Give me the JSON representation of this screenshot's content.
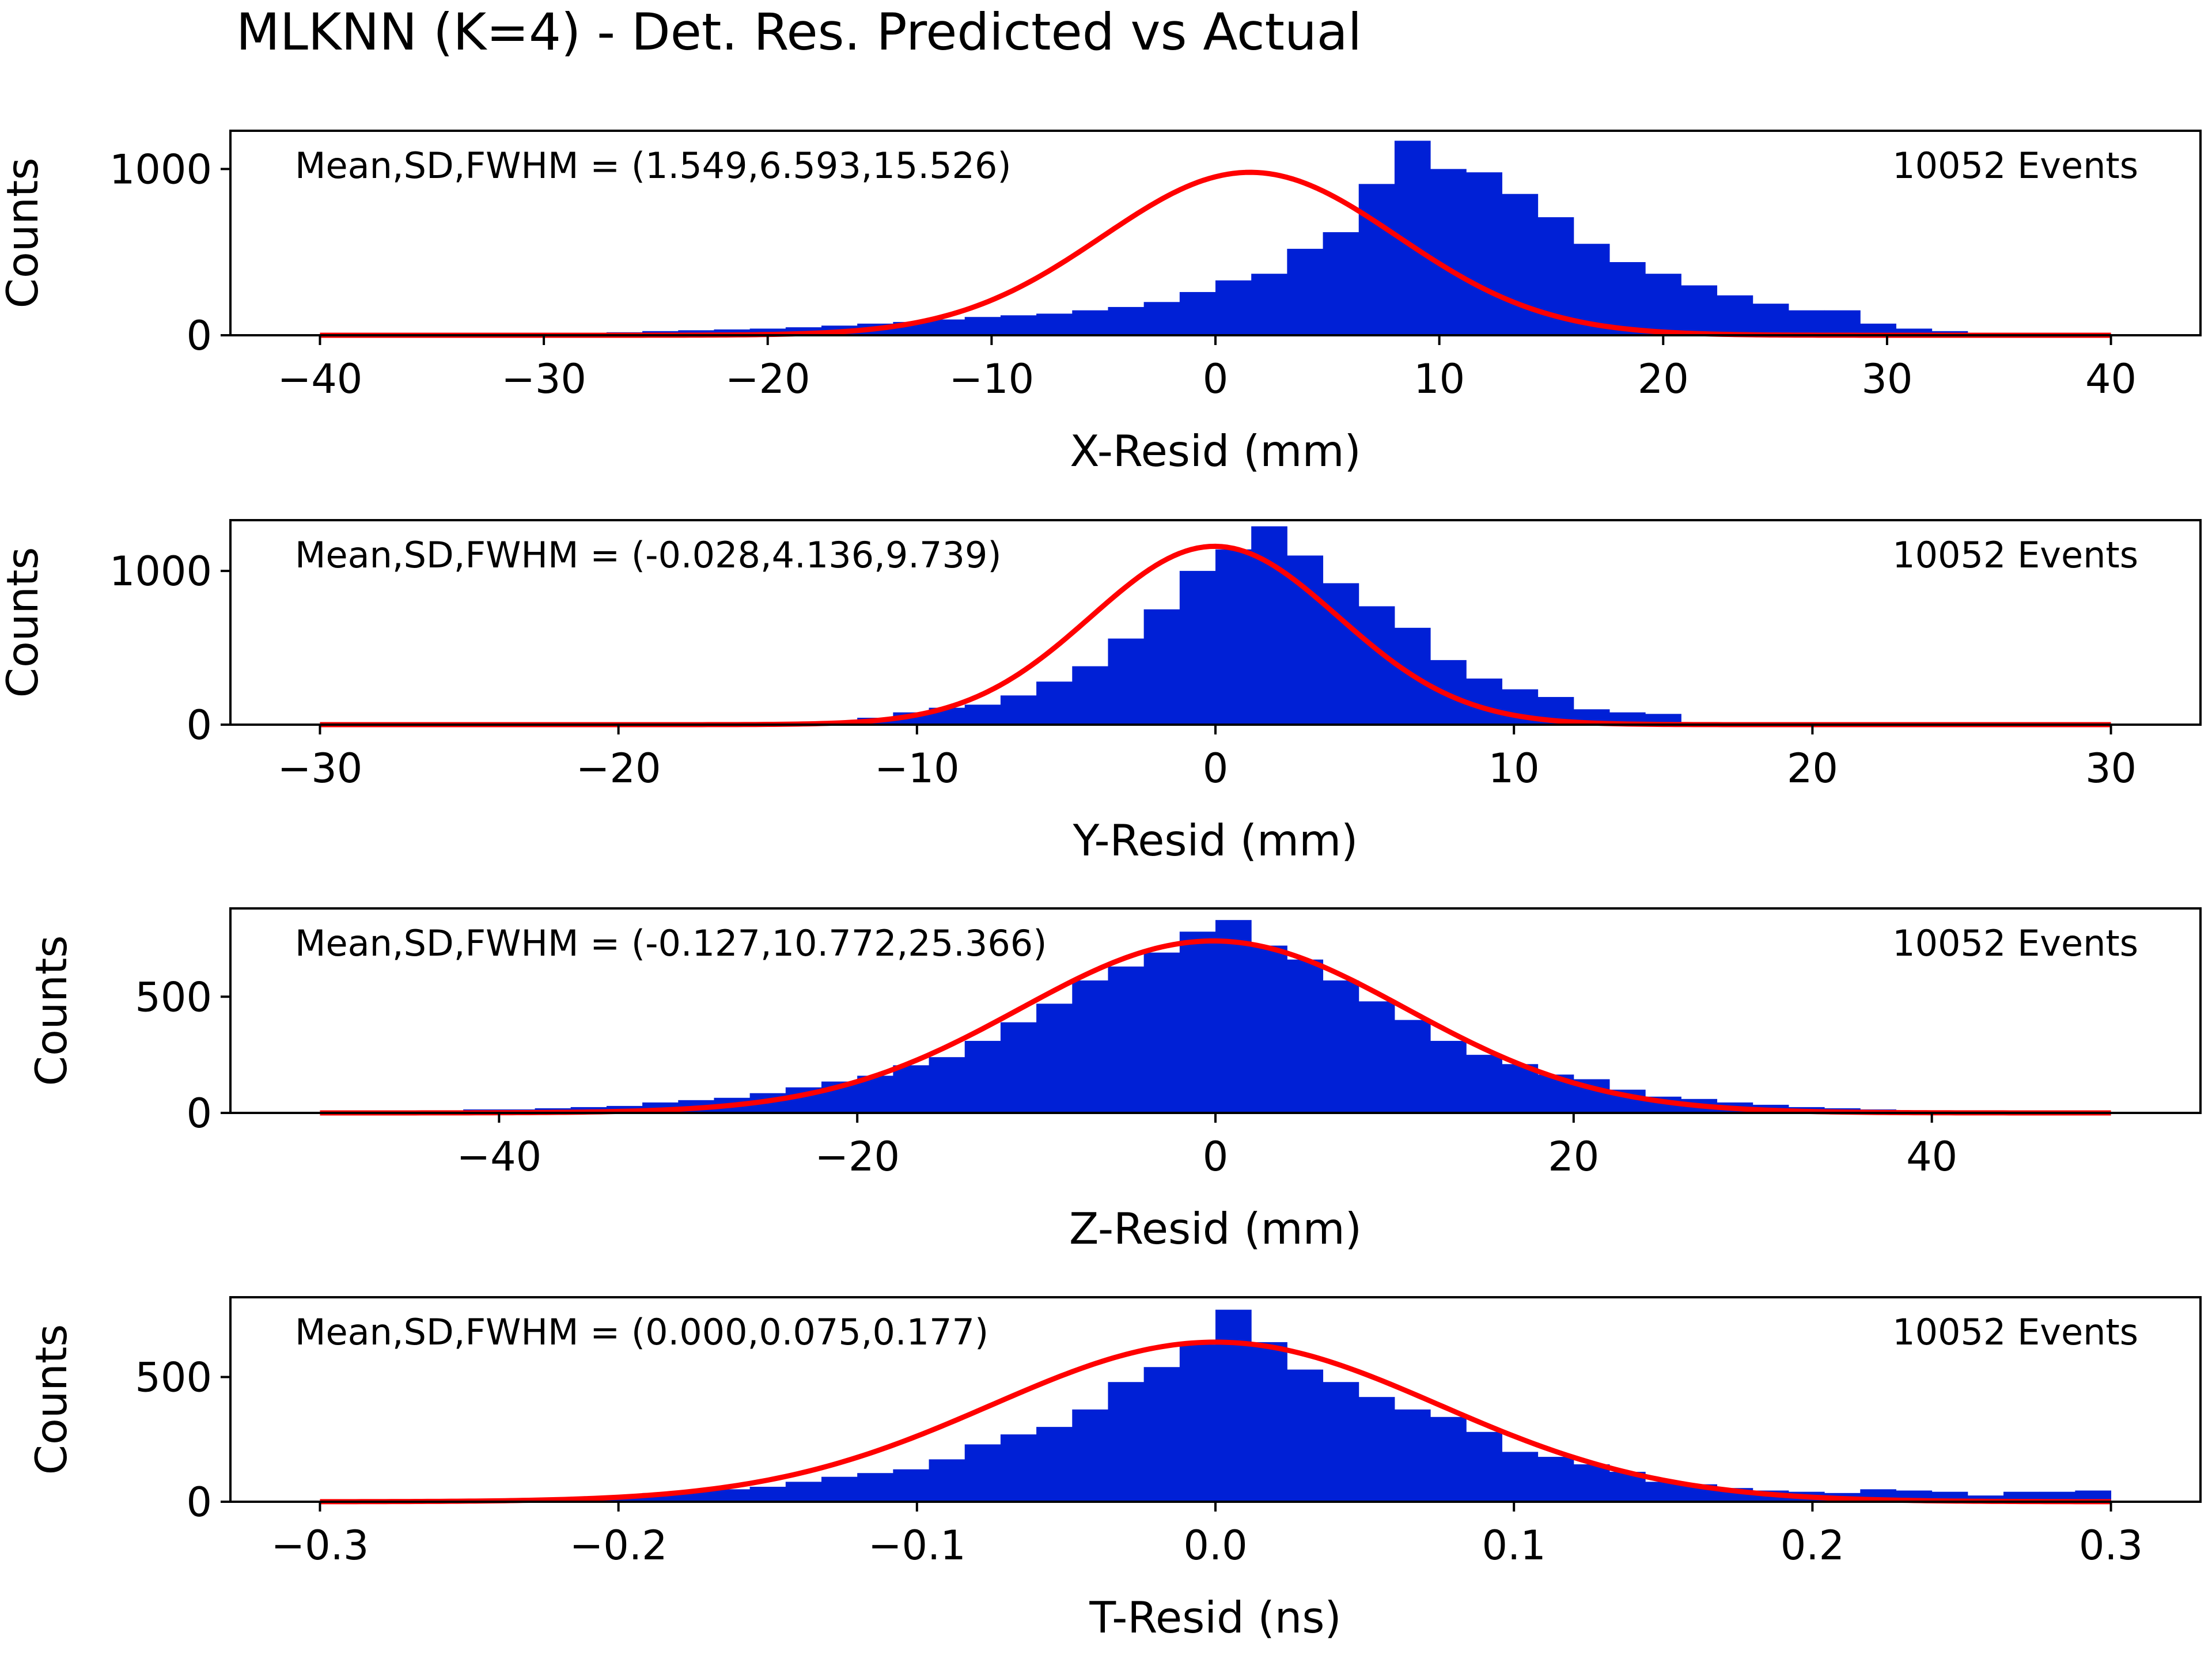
{
  "figure": {
    "title": "MLKNN (K=4) - Det. Res. Predicted vs Actual"
  },
  "colors": {
    "bars": "#0020d6",
    "fit": "#ff0000",
    "axes": "#000000",
    "background": "#ffffff"
  },
  "chart_data": [
    {
      "type": "bar",
      "title": "",
      "xlabel": "X-Resid (mm)",
      "ylabel": "Counts",
      "xlim": [
        -44,
        44
      ],
      "ylim": [
        0,
        1230
      ],
      "xticks": [
        -40,
        -30,
        -20,
        -10,
        0,
        10,
        20,
        30,
        40
      ],
      "xtick_labels": [
        "−40",
        "−30",
        "−20",
        "−10",
        "0",
        "10",
        "20",
        "30",
        "40"
      ],
      "yticks": [
        0,
        1000
      ],
      "ytick_labels": [
        "0",
        "1000"
      ],
      "grid": false,
      "annotation_left": "Mean,SD,FWHM = (1.549,6.593,15.526)",
      "annotation_right": "10052 Events",
      "bins": {
        "start": -40,
        "end": 40,
        "count": 50,
        "values": [
          2,
          2,
          2,
          3,
          3,
          5,
          8,
          12,
          18,
          25,
          30,
          35,
          40,
          48,
          58,
          70,
          80,
          95,
          110,
          120,
          130,
          150,
          170,
          200,
          260,
          330,
          370,
          520,
          620,
          910,
          1170,
          1000,
          980,
          850,
          710,
          550,
          440,
          370,
          300,
          240,
          190,
          150,
          150,
          70,
          40,
          25,
          15,
          12,
          10,
          8
        ]
      },
      "fit": {
        "model": "gaussian",
        "amplitude": 980,
        "mean": 1.549,
        "sd": 6.593
      }
    },
    {
      "type": "bar",
      "title": "",
      "xlabel": "Y-Resid (mm)",
      "ylabel": "Counts",
      "xlim": [
        -33,
        33
      ],
      "ylim": [
        0,
        1330
      ],
      "xticks": [
        -30,
        -20,
        -10,
        0,
        10,
        20,
        30
      ],
      "xtick_labels": [
        "−30",
        "−20",
        "−10",
        "0",
        "10",
        "20",
        "30"
      ],
      "yticks": [
        0,
        1000
      ],
      "ytick_labels": [
        "0",
        "1000"
      ],
      "grid": false,
      "annotation_left": "Mean,SD,FWHM = (-0.028,4.136,9.739)",
      "annotation_right": "10052 Events",
      "bins": {
        "start": -30,
        "end": 30,
        "count": 50,
        "values": [
          0,
          0,
          0,
          1,
          1,
          1,
          2,
          2,
          3,
          4,
          5,
          7,
          10,
          15,
          20,
          45,
          80,
          110,
          130,
          190,
          280,
          380,
          560,
          750,
          1000,
          1140,
          1290,
          1100,
          920,
          770,
          630,
          420,
          300,
          230,
          180,
          100,
          80,
          70,
          15,
          8,
          5,
          4,
          3,
          2,
          2,
          1,
          1,
          1,
          0,
          0
        ]
      },
      "fit": {
        "model": "gaussian",
        "amplitude": 1160,
        "mean": -0.028,
        "sd": 4.136
      }
    },
    {
      "type": "bar",
      "title": "",
      "xlabel": "Z-Resid (mm)",
      "ylabel": "Counts",
      "xlim": [
        -55,
        55
      ],
      "ylim": [
        0,
        880
      ],
      "xticks": [
        -40,
        -20,
        0,
        20,
        40
      ],
      "xtick_labels": [
        "−40",
        "−20",
        "0",
        "20",
        "40"
      ],
      "yticks": [
        0,
        500
      ],
      "ytick_labels": [
        "0",
        "500"
      ],
      "grid": false,
      "annotation_left": "Mean,SD,FWHM = (-0.127,10.772,25.366)",
      "annotation_right": "10052 Events",
      "bins": {
        "start": -50,
        "end": 50,
        "count": 50,
        "values": [
          5,
          5,
          8,
          10,
          15,
          15,
          20,
          25,
          30,
          45,
          55,
          65,
          85,
          110,
          135,
          160,
          205,
          240,
          310,
          390,
          470,
          570,
          630,
          690,
          780,
          830,
          720,
          660,
          570,
          480,
          400,
          310,
          250,
          210,
          165,
          145,
          100,
          70,
          60,
          45,
          35,
          25,
          20,
          15,
          10,
          8,
          6,
          5,
          3,
          2
        ]
      },
      "fit": {
        "model": "gaussian",
        "amplitude": 740,
        "mean": -0.127,
        "sd": 10.772
      }
    },
    {
      "type": "bar",
      "title": "",
      "xlabel": "T-Resid (ns)",
      "ylabel": "Counts",
      "xlim": [
        -0.33,
        0.33
      ],
      "ylim": [
        0,
        820
      ],
      "xticks": [
        -0.3,
        -0.2,
        -0.1,
        0.0,
        0.1,
        0.2,
        0.3
      ],
      "xtick_labels": [
        "−0.3",
        "−0.2",
        "−0.1",
        "0.0",
        "0.1",
        "0.2",
        "0.3"
      ],
      "yticks": [
        0,
        500
      ],
      "ytick_labels": [
        "0",
        "500"
      ],
      "grid": false,
      "annotation_left": "Mean,SD,FWHM = (0.000,0.075,0.177)",
      "annotation_right": "10052 Events",
      "bins": {
        "start": -0.3,
        "end": 0.3,
        "count": 50,
        "values": [
          5,
          5,
          5,
          8,
          10,
          10,
          15,
          20,
          25,
          35,
          45,
          50,
          60,
          80,
          100,
          115,
          130,
          170,
          230,
          270,
          300,
          370,
          480,
          540,
          630,
          770,
          640,
          530,
          480,
          420,
          370,
          340,
          280,
          200,
          180,
          150,
          120,
          80,
          70,
          55,
          45,
          40,
          35,
          50,
          45,
          40,
          25,
          40,
          40,
          45
        ]
      },
      "fit": {
        "model": "gaussian",
        "amplitude": 640,
        "mean": 0.0,
        "sd": 0.075
      }
    }
  ]
}
